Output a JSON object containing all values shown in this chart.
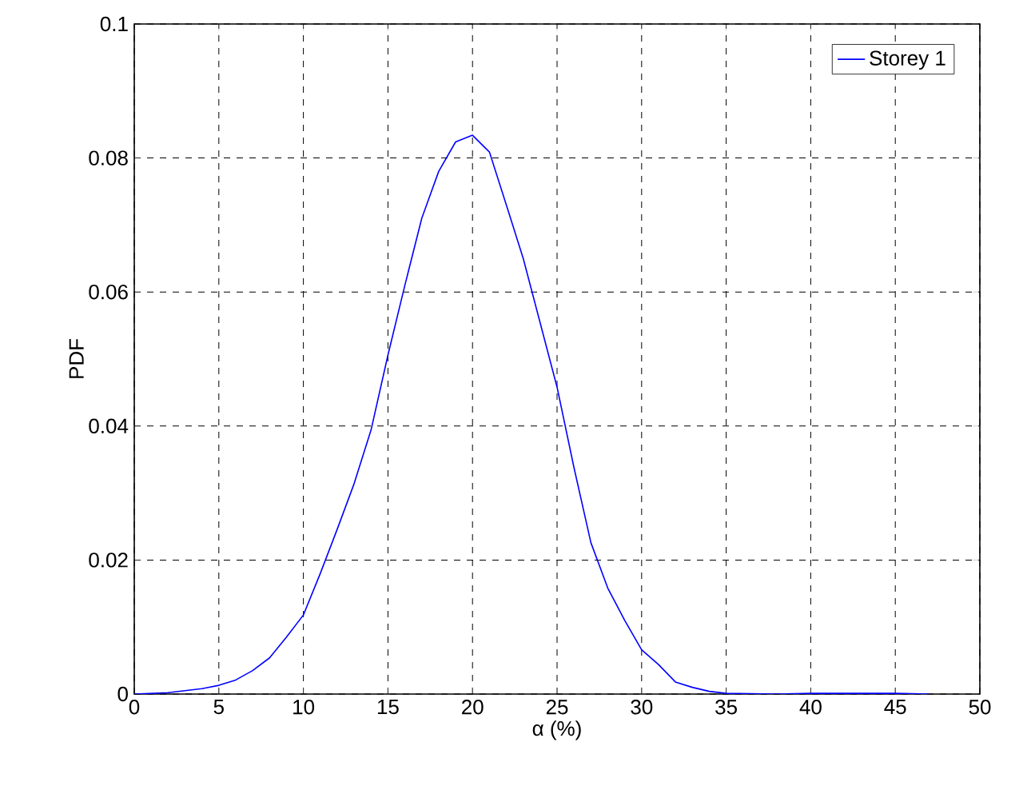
{
  "chart_data": {
    "type": "line",
    "xlabel": "α (%)",
    "ylabel": "PDF",
    "xlim": [
      0,
      50
    ],
    "ylim": [
      0,
      0.1
    ],
    "xticks": [
      0,
      5,
      10,
      15,
      20,
      25,
      30,
      35,
      40,
      45,
      50
    ],
    "yticks": [
      0,
      0.02,
      0.04,
      0.06,
      0.08,
      0.1
    ],
    "grid": true,
    "legend": "top right",
    "series": [
      {
        "name": "Storey 1",
        "color": "#0000ff",
        "x": [
          0,
          2,
          4,
          5,
          6,
          7,
          8,
          9,
          10,
          11,
          12,
          13,
          14,
          15,
          16,
          17,
          18,
          19,
          20,
          21,
          22,
          23,
          24,
          25,
          26,
          27,
          28,
          29,
          30,
          31,
          32,
          33,
          34,
          35,
          38,
          40,
          42,
          45,
          47
        ],
        "values": [
          0,
          0.0002,
          0.0008,
          0.0013,
          0.0021,
          0.0035,
          0.0054,
          0.0085,
          0.0118,
          0.018,
          0.0246,
          0.0314,
          0.0394,
          0.0506,
          0.061,
          0.071,
          0.078,
          0.0824,
          0.0834,
          0.0809,
          0.073,
          0.065,
          0.0554,
          0.0458,
          0.0338,
          0.0226,
          0.0158,
          0.011,
          0.0066,
          0.0044,
          0.0018,
          0.001,
          0.0004,
          0.0001,
          0,
          0.0001,
          0.0001,
          0.0001,
          0
        ]
      }
    ]
  }
}
